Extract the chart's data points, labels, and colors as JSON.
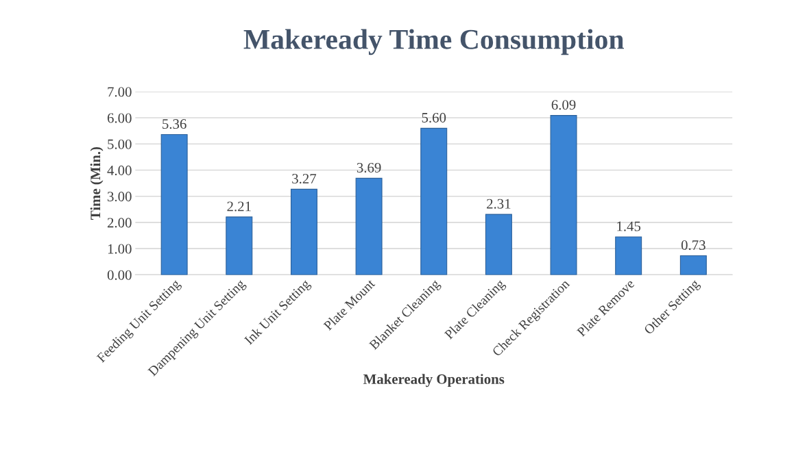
{
  "chart_data": {
    "type": "bar",
    "title": "Makeready Time Consumption",
    "xlabel": "Makeready Operations",
    "ylabel": "Time (Min.)",
    "categories": [
      "Feeding Unit Setting",
      "Dampening Unit Setting",
      "Ink Unit Setting",
      "Plate Mount",
      "Blanket Cleaning",
      "Plate Cleaning",
      "Check Registration",
      "Plate Remove",
      "Other Setting"
    ],
    "values": [
      5.36,
      2.21,
      3.27,
      3.69,
      5.6,
      2.31,
      6.09,
      1.45,
      0.73
    ],
    "value_labels": [
      "5.36",
      "2.21",
      "3.27",
      "3.69",
      "5.60",
      "2.31",
      "6.09",
      "1.45",
      "0.73"
    ],
    "color": "#3a84d4",
    "ylim": [
      0,
      7
    ],
    "yticks": [
      {
        "value": 0,
        "label": "0.00"
      },
      {
        "value": 1,
        "label": "1.00"
      },
      {
        "value": 2,
        "label": "2.00"
      },
      {
        "value": 3,
        "label": "3.00"
      },
      {
        "value": 4,
        "label": "4.00"
      },
      {
        "value": 5,
        "label": "5.00"
      },
      {
        "value": 6,
        "label": "6.00"
      },
      {
        "value": 7,
        "label": "7.00"
      }
    ],
    "grid": "y"
  }
}
